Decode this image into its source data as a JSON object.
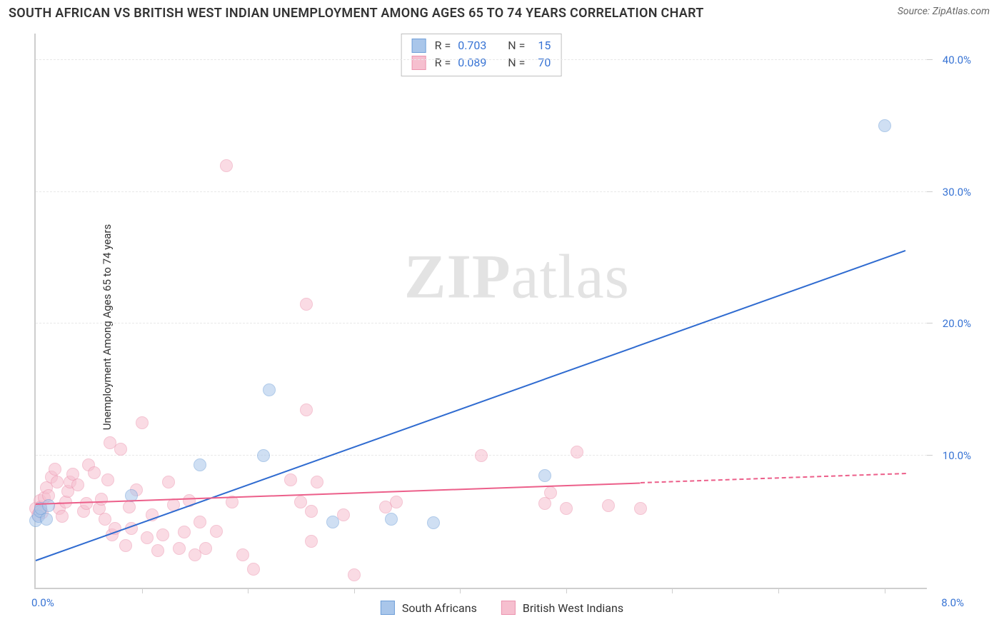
{
  "header": {
    "title": "SOUTH AFRICAN VS BRITISH WEST INDIAN UNEMPLOYMENT AMONG AGES 65 TO 74 YEARS CORRELATION CHART",
    "source": "Source: ZipAtlas.com"
  },
  "chart": {
    "type": "scatter",
    "ylabel": "Unemployment Among Ages 65 to 74 years",
    "background_color": "#ffffff",
    "grid_color": "#e8e8e8",
    "axis_color": "#cecece",
    "tick_label_color": "#3773d4",
    "label_fontsize": 15,
    "title_fontsize": 18,
    "marker_radius": 9,
    "marker_opacity": 0.55,
    "xlim": [
      0,
      8.4
    ],
    "ylim": [
      0,
      42
    ],
    "x_ticks": [
      1,
      2,
      3,
      4,
      5,
      6,
      7,
      8
    ],
    "x_tick_labels": {
      "0": "0.0%",
      "8": "8.0%"
    },
    "y_ticks": [
      10,
      20,
      30,
      40
    ],
    "y_tick_labels": {
      "10": "10.0%",
      "20": "20.0%",
      "30": "30.0%",
      "40": "40.0%"
    },
    "watermark": {
      "text_bold": "ZIP",
      "text_light": "atlas",
      "color": "#e3e3e3"
    },
    "series": [
      {
        "id": "south_africans",
        "label": "South Africans",
        "marker_fill": "#a9c6ea",
        "marker_stroke": "#6f9fd8",
        "trend_color": "#2f6bd0",
        "trend_width": 2,
        "R": "0.703",
        "N": "15",
        "trend": {
          "x0": 0.0,
          "y0": 2.0,
          "x1": 8.2,
          "y1": 25.5,
          "dash_after_x": null
        },
        "points": [
          [
            0.0,
            5.1
          ],
          [
            0.03,
            5.4
          ],
          [
            0.04,
            5.8
          ],
          [
            0.05,
            6.0
          ],
          [
            0.1,
            5.2
          ],
          [
            0.12,
            6.2
          ],
          [
            0.9,
            7.0
          ],
          [
            1.55,
            9.3
          ],
          [
            2.15,
            10.0
          ],
          [
            2.2,
            15.0
          ],
          [
            2.8,
            5.0
          ],
          [
            3.35,
            5.2
          ],
          [
            3.75,
            4.9
          ],
          [
            4.8,
            8.5
          ],
          [
            8.0,
            35.0
          ]
        ]
      },
      {
        "id": "british_west_indians",
        "label": "British West Indians",
        "marker_fill": "#f6bfcf",
        "marker_stroke": "#ec94af",
        "trend_color": "#ec5f8a",
        "trend_width": 2,
        "R": "0.089",
        "N": "70",
        "trend": {
          "x0": 0.0,
          "y0": 6.3,
          "x1": 8.2,
          "y1": 8.6,
          "dash_after_x": 5.7
        },
        "points": [
          [
            0.0,
            6.0
          ],
          [
            0.02,
            5.5
          ],
          [
            0.04,
            6.6
          ],
          [
            0.05,
            6.1
          ],
          [
            0.06,
            5.7
          ],
          [
            0.08,
            6.8
          ],
          [
            0.1,
            7.6
          ],
          [
            0.12,
            7.0
          ],
          [
            0.15,
            8.4
          ],
          [
            0.18,
            9.0
          ],
          [
            0.2,
            8.0
          ],
          [
            0.22,
            6.0
          ],
          [
            0.25,
            5.4
          ],
          [
            0.28,
            6.5
          ],
          [
            0.3,
            7.3
          ],
          [
            0.32,
            8.0
          ],
          [
            0.35,
            8.6
          ],
          [
            0.4,
            7.8
          ],
          [
            0.45,
            5.8
          ],
          [
            0.48,
            6.4
          ],
          [
            0.5,
            9.3
          ],
          [
            0.55,
            8.7
          ],
          [
            0.6,
            6.0
          ],
          [
            0.62,
            6.7
          ],
          [
            0.65,
            5.2
          ],
          [
            0.68,
            8.2
          ],
          [
            0.7,
            11.0
          ],
          [
            0.72,
            4.0
          ],
          [
            0.75,
            4.5
          ],
          [
            0.8,
            10.5
          ],
          [
            0.85,
            3.2
          ],
          [
            0.88,
            6.1
          ],
          [
            0.9,
            4.5
          ],
          [
            0.95,
            7.4
          ],
          [
            1.0,
            12.5
          ],
          [
            1.05,
            3.8
          ],
          [
            1.1,
            5.5
          ],
          [
            1.15,
            2.8
          ],
          [
            1.2,
            4.0
          ],
          [
            1.25,
            8.0
          ],
          [
            1.3,
            6.3
          ],
          [
            1.35,
            3.0
          ],
          [
            1.4,
            4.2
          ],
          [
            1.45,
            6.6
          ],
          [
            1.5,
            2.5
          ],
          [
            1.55,
            5.0
          ],
          [
            1.6,
            3.0
          ],
          [
            1.7,
            4.3
          ],
          [
            1.8,
            32.0
          ],
          [
            1.85,
            6.5
          ],
          [
            1.95,
            2.5
          ],
          [
            2.05,
            1.4
          ],
          [
            2.4,
            8.2
          ],
          [
            2.5,
            6.5
          ],
          [
            2.55,
            13.5
          ],
          [
            2.55,
            21.5
          ],
          [
            2.6,
            3.5
          ],
          [
            2.6,
            5.8
          ],
          [
            2.65,
            8.0
          ],
          [
            2.9,
            5.5
          ],
          [
            3.0,
            1.0
          ],
          [
            3.3,
            6.1
          ],
          [
            3.4,
            6.5
          ],
          [
            4.2,
            10.0
          ],
          [
            4.8,
            6.4
          ],
          [
            4.85,
            7.2
          ],
          [
            5.0,
            6.0
          ],
          [
            5.1,
            10.3
          ],
          [
            5.4,
            6.2
          ],
          [
            5.7,
            6.0
          ]
        ]
      }
    ],
    "r_box": {
      "border_color": "#bfbfbf",
      "bg": "#ffffff"
    },
    "bottom_legend": {
      "items": [
        "south_africans",
        "british_west_indians"
      ]
    }
  }
}
